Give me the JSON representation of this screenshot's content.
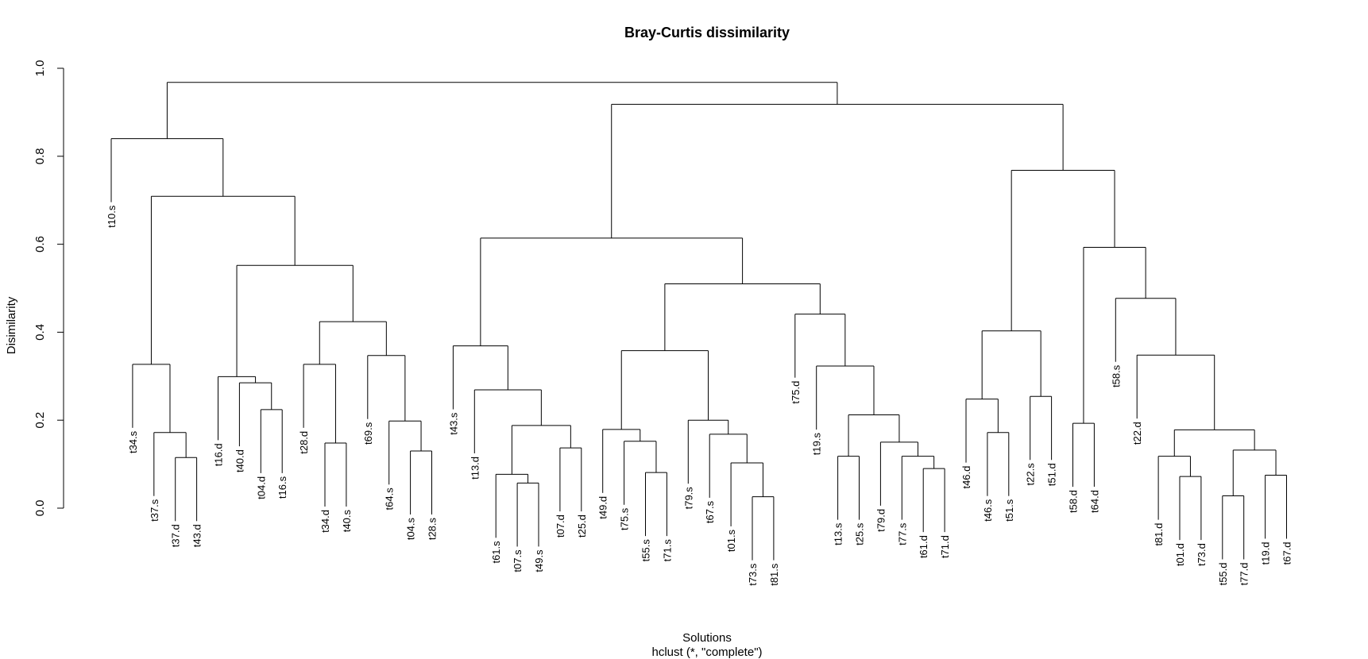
{
  "chart_data": {
    "type": "dendrogram",
    "title": "Bray-Curtis dissimilarity",
    "xlabel": "Solutions",
    "subtitle": "hclust (*, \"complete\")",
    "ylabel": "Disimilarity",
    "ylim": [
      0,
      1.0
    ],
    "yticks": [
      "0.0",
      "0.2",
      "0.4",
      "0.6",
      "0.8",
      "1.0"
    ],
    "leaves": [
      "t10.s",
      "t34.s",
      "t37.s",
      "t37.d",
      "t43.d",
      "t16.d",
      "t40.d",
      "t04.d",
      "t16.s",
      "t28.d",
      "t34.d",
      "t40.s",
      "t69.s",
      "t64.s",
      "t04.s",
      "t28.s",
      "t43.s",
      "t13.d",
      "t61.s",
      "t07.s",
      "t49.s",
      "t07.d",
      "t25.d",
      "t49.d",
      "t75.s",
      "t55.s",
      "t71.s",
      "t79.s",
      "t67.s",
      "t01.s",
      "t73.s",
      "t81.s",
      "t75.d",
      "t19.s",
      "t13.s",
      "t25.s",
      "t79.d",
      "t77.s",
      "t61.d",
      "t71.d",
      "t46.d",
      "t46.s",
      "t51.s",
      "t22.s",
      "t51.d",
      "t58.d",
      "t64.d",
      "t58.s",
      "t22.d",
      "t81.d",
      "t01.d",
      "t73.d",
      "t55.d",
      "t77.d",
      "t19.d",
      "t67.d"
    ],
    "merges": [
      [
        "t37.d",
        "t43.d",
        0.115
      ],
      [
        "t37.s",
        0,
        0.172
      ],
      [
        "t34.s",
        1,
        0.327
      ],
      [
        "t04.d",
        "t16.s",
        0.224
      ],
      [
        "t40.d",
        3,
        0.285
      ],
      [
        "t16.d",
        4,
        0.299
      ],
      [
        "t34.d",
        "t40.s",
        0.148
      ],
      [
        "t28.d",
        6,
        0.327
      ],
      [
        "t04.s",
        "t28.s",
        0.13
      ],
      [
        "t64.s",
        8,
        0.198
      ],
      [
        "t69.s",
        9,
        0.347
      ],
      [
        7,
        10,
        0.424
      ],
      [
        5,
        11,
        0.552
      ],
      [
        2,
        12,
        0.709
      ],
      [
        "t10.s",
        13,
        0.84
      ],
      [
        "t07.s",
        "t49.s",
        0.057
      ],
      [
        "t61.s",
        15,
        0.077
      ],
      [
        "t07.d",
        "t25.d",
        0.137
      ],
      [
        16,
        17,
        0.188
      ],
      [
        "t13.d",
        18,
        0.269
      ],
      [
        "t43.s",
        19,
        0.369
      ],
      [
        "t55.s",
        "t71.s",
        0.081
      ],
      [
        "t75.s",
        21,
        0.152
      ],
      [
        "t49.d",
        22,
        0.179
      ],
      [
        "t73.s",
        "t81.s",
        0.026
      ],
      [
        "t01.s",
        24,
        0.103
      ],
      [
        "t67.s",
        25,
        0.168
      ],
      [
        "t79.s",
        26,
        0.2
      ],
      [
        23,
        27,
        0.358
      ],
      [
        "t61.d",
        "t71.d",
        0.09
      ],
      [
        "t77.s",
        29,
        0.118
      ],
      [
        "t79.d",
        30,
        0.15
      ],
      [
        "t13.s",
        "t25.s",
        0.118
      ],
      [
        32,
        31,
        0.212
      ],
      [
        "t19.s",
        33,
        0.323
      ],
      [
        "t75.d",
        34,
        0.441
      ],
      [
        28,
        35,
        0.51
      ],
      [
        20,
        36,
        0.614
      ],
      [
        "t46.s",
        "t51.s",
        0.172
      ],
      [
        "t46.d",
        38,
        0.248
      ],
      [
        "t22.s",
        "t51.d",
        0.254
      ],
      [
        39,
        40,
        0.403
      ],
      [
        "t58.d",
        "t64.d",
        0.193
      ],
      [
        "t01.d",
        "t73.d",
        0.072
      ],
      [
        "t81.d",
        43,
        0.118
      ],
      [
        "t55.d",
        "t77.d",
        0.028
      ],
      [
        "t19.d",
        "t67.d",
        0.075
      ],
      [
        45,
        46,
        0.132
      ],
      [
        44,
        47,
        0.178
      ],
      [
        "t22.d",
        48,
        0.348
      ],
      [
        "t58.s",
        49,
        0.477
      ],
      [
        42,
        50,
        0.593
      ],
      [
        41,
        51,
        0.768
      ],
      [
        37,
        52,
        0.918
      ],
      [
        14,
        53,
        0.968
      ]
    ]
  }
}
